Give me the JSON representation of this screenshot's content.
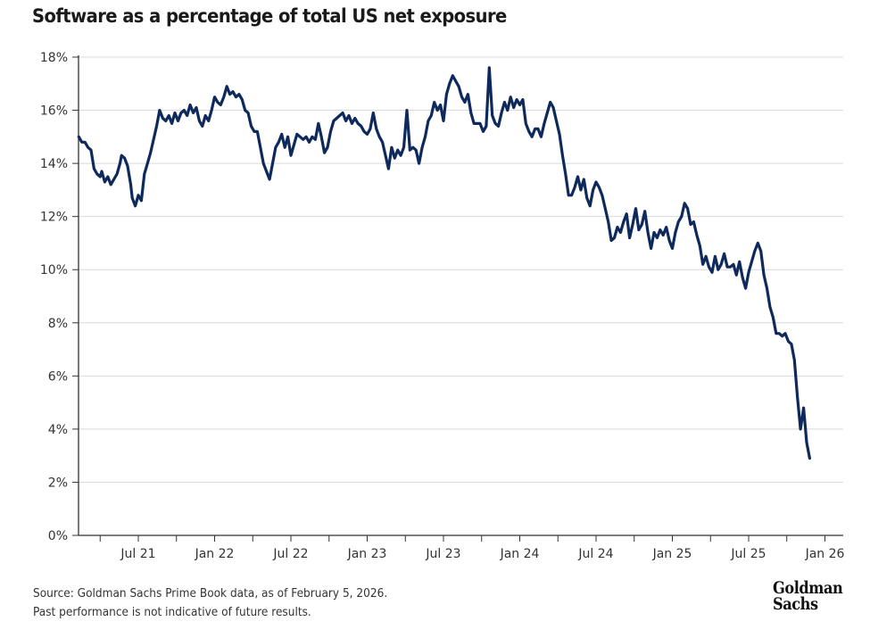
{
  "chart_data": {
    "type": "line",
    "title": "Software as a percentage of total US net exposure",
    "xlabel": "",
    "ylabel": "",
    "ylim": [
      0,
      18
    ],
    "yticks": [
      0,
      2,
      4,
      6,
      8,
      10,
      12,
      14,
      16,
      18
    ],
    "ytick_labels": [
      "0%",
      "2%",
      "4%",
      "6%",
      "8%",
      "10%",
      "12%",
      "14%",
      "16%",
      "18%"
    ],
    "xlim": [
      2021.11,
      2026.12
    ],
    "xticks_major": [
      2021.5,
      2022.0,
      2022.5,
      2023.0,
      2023.5,
      2024.0,
      2024.5,
      2025.0,
      2025.5,
      2026.0
    ],
    "xtick_labels": [
      "Jul 21",
      "Jan 22",
      "Jul 22",
      "Jan 23",
      "Jul 23",
      "Jan 24",
      "Jul 24",
      "Jan 25",
      "Jul 25",
      "Jan 26"
    ],
    "xticks_minor": [
      2021.25,
      2021.75,
      2022.25,
      2022.75,
      2023.25,
      2023.75,
      2024.25,
      2024.75,
      2025.25,
      2025.75
    ],
    "grid": "horizontal",
    "legend": "none",
    "series": [
      {
        "name": "Software % of US net exposure",
        "color": "#0e2a5c",
        "points": [
          [
            2021.11,
            15.0
          ],
          [
            2021.13,
            14.8
          ],
          [
            2021.15,
            14.8
          ],
          [
            2021.17,
            14.6
          ],
          [
            2021.19,
            14.5
          ],
          [
            2021.21,
            13.8
          ],
          [
            2021.23,
            13.6
          ],
          [
            2021.25,
            13.5
          ],
          [
            2021.26,
            13.7
          ],
          [
            2021.28,
            13.3
          ],
          [
            2021.3,
            13.5
          ],
          [
            2021.32,
            13.2
          ],
          [
            2021.34,
            13.4
          ],
          [
            2021.36,
            13.6
          ],
          [
            2021.38,
            14.0
          ],
          [
            2021.39,
            14.3
          ],
          [
            2021.41,
            14.2
          ],
          [
            2021.43,
            13.9
          ],
          [
            2021.45,
            13.2
          ],
          [
            2021.46,
            12.7
          ],
          [
            2021.48,
            12.4
          ],
          [
            2021.5,
            12.8
          ],
          [
            2021.52,
            12.6
          ],
          [
            2021.54,
            13.6
          ],
          [
            2021.56,
            14.0
          ],
          [
            2021.58,
            14.4
          ],
          [
            2021.6,
            14.9
          ],
          [
            2021.62,
            15.4
          ],
          [
            2021.64,
            16.0
          ],
          [
            2021.66,
            15.7
          ],
          [
            2021.68,
            15.6
          ],
          [
            2021.7,
            15.8
          ],
          [
            2021.72,
            15.5
          ],
          [
            2021.74,
            15.9
          ],
          [
            2021.76,
            15.6
          ],
          [
            2021.78,
            15.9
          ],
          [
            2021.8,
            16.0
          ],
          [
            2021.82,
            15.8
          ],
          [
            2021.84,
            16.2
          ],
          [
            2021.86,
            15.9
          ],
          [
            2021.88,
            16.1
          ],
          [
            2021.9,
            15.6
          ],
          [
            2021.92,
            15.4
          ],
          [
            2021.94,
            15.8
          ],
          [
            2021.96,
            15.6
          ],
          [
            2021.98,
            16.0
          ],
          [
            2022.0,
            16.5
          ],
          [
            2022.02,
            16.3
          ],
          [
            2022.04,
            16.2
          ],
          [
            2022.06,
            16.5
          ],
          [
            2022.08,
            16.9
          ],
          [
            2022.1,
            16.6
          ],
          [
            2022.12,
            16.7
          ],
          [
            2022.14,
            16.5
          ],
          [
            2022.16,
            16.6
          ],
          [
            2022.18,
            16.4
          ],
          [
            2022.2,
            16.0
          ],
          [
            2022.22,
            15.9
          ],
          [
            2022.24,
            15.4
          ],
          [
            2022.26,
            15.2
          ],
          [
            2022.28,
            15.2
          ],
          [
            2022.3,
            14.6
          ],
          [
            2022.32,
            14.0
          ],
          [
            2022.34,
            13.7
          ],
          [
            2022.36,
            13.4
          ],
          [
            2022.38,
            14.0
          ],
          [
            2022.4,
            14.6
          ],
          [
            2022.42,
            14.8
          ],
          [
            2022.44,
            15.1
          ],
          [
            2022.46,
            14.6
          ],
          [
            2022.48,
            15.0
          ],
          [
            2022.5,
            14.3
          ],
          [
            2022.52,
            14.7
          ],
          [
            2022.54,
            15.1
          ],
          [
            2022.56,
            15.0
          ],
          [
            2022.58,
            14.9
          ],
          [
            2022.6,
            15.0
          ],
          [
            2022.62,
            14.8
          ],
          [
            2022.64,
            15.0
          ],
          [
            2022.66,
            14.9
          ],
          [
            2022.68,
            15.5
          ],
          [
            2022.7,
            15.0
          ],
          [
            2022.72,
            14.4
          ],
          [
            2022.74,
            14.6
          ],
          [
            2022.76,
            15.2
          ],
          [
            2022.78,
            15.6
          ],
          [
            2022.8,
            15.7
          ],
          [
            2022.82,
            15.8
          ],
          [
            2022.84,
            15.9
          ],
          [
            2022.86,
            15.6
          ],
          [
            2022.88,
            15.8
          ],
          [
            2022.9,
            15.5
          ],
          [
            2022.92,
            15.7
          ],
          [
            2022.94,
            15.5
          ],
          [
            2022.96,
            15.4
          ],
          [
            2022.98,
            15.2
          ],
          [
            2023.0,
            15.1
          ],
          [
            2023.02,
            15.3
          ],
          [
            2023.04,
            15.9
          ],
          [
            2023.06,
            15.3
          ],
          [
            2023.08,
            15.0
          ],
          [
            2023.1,
            14.8
          ],
          [
            2023.12,
            14.3
          ],
          [
            2023.14,
            13.8
          ],
          [
            2023.16,
            14.6
          ],
          [
            2023.18,
            14.2
          ],
          [
            2023.2,
            14.5
          ],
          [
            2023.22,
            14.3
          ],
          [
            2023.24,
            14.6
          ],
          [
            2023.26,
            16.0
          ],
          [
            2023.28,
            14.5
          ],
          [
            2023.3,
            14.6
          ],
          [
            2023.32,
            14.5
          ],
          [
            2023.34,
            14.0
          ],
          [
            2023.36,
            14.6
          ],
          [
            2023.38,
            15.0
          ],
          [
            2023.4,
            15.6
          ],
          [
            2023.42,
            15.8
          ],
          [
            2023.44,
            16.3
          ],
          [
            2023.46,
            16.0
          ],
          [
            2023.48,
            16.2
          ],
          [
            2023.5,
            15.6
          ],
          [
            2023.52,
            16.6
          ],
          [
            2023.54,
            17.0
          ],
          [
            2023.56,
            17.3
          ],
          [
            2023.58,
            17.1
          ],
          [
            2023.6,
            16.9
          ],
          [
            2023.62,
            16.5
          ],
          [
            2023.64,
            16.3
          ],
          [
            2023.66,
            16.6
          ],
          [
            2023.68,
            15.9
          ],
          [
            2023.7,
            15.5
          ],
          [
            2023.72,
            15.5
          ],
          [
            2023.74,
            15.5
          ],
          [
            2023.76,
            15.2
          ],
          [
            2023.78,
            15.4
          ],
          [
            2023.8,
            17.6
          ],
          [
            2023.82,
            15.8
          ],
          [
            2023.84,
            15.5
          ],
          [
            2023.86,
            15.4
          ],
          [
            2023.88,
            15.9
          ],
          [
            2023.9,
            16.3
          ],
          [
            2023.92,
            16.0
          ],
          [
            2023.94,
            16.5
          ],
          [
            2023.96,
            16.1
          ],
          [
            2023.98,
            16.4
          ],
          [
            2024.0,
            16.2
          ],
          [
            2024.02,
            16.4
          ],
          [
            2024.04,
            15.5
          ],
          [
            2024.06,
            15.2
          ],
          [
            2024.08,
            15.0
          ],
          [
            2024.1,
            15.3
          ],
          [
            2024.12,
            15.3
          ],
          [
            2024.14,
            15.0
          ],
          [
            2024.16,
            15.5
          ],
          [
            2024.18,
            15.9
          ],
          [
            2024.2,
            16.3
          ],
          [
            2024.22,
            16.1
          ],
          [
            2024.24,
            15.6
          ],
          [
            2024.26,
            15.1
          ],
          [
            2024.28,
            14.3
          ],
          [
            2024.3,
            13.6
          ],
          [
            2024.32,
            12.8
          ],
          [
            2024.34,
            12.8
          ],
          [
            2024.36,
            13.1
          ],
          [
            2024.38,
            13.5
          ],
          [
            2024.4,
            13.0
          ],
          [
            2024.42,
            13.4
          ],
          [
            2024.44,
            12.7
          ],
          [
            2024.46,
            12.4
          ],
          [
            2024.48,
            13.0
          ],
          [
            2024.5,
            13.3
          ],
          [
            2024.52,
            13.1
          ],
          [
            2024.54,
            12.8
          ],
          [
            2024.56,
            12.3
          ],
          [
            2024.58,
            11.8
          ],
          [
            2024.6,
            11.1
          ],
          [
            2024.62,
            11.2
          ],
          [
            2024.64,
            11.6
          ],
          [
            2024.66,
            11.4
          ],
          [
            2024.68,
            11.8
          ],
          [
            2024.7,
            12.1
          ],
          [
            2024.72,
            11.2
          ],
          [
            2024.74,
            11.7
          ],
          [
            2024.76,
            12.3
          ],
          [
            2024.78,
            11.5
          ],
          [
            2024.8,
            11.7
          ],
          [
            2024.82,
            12.2
          ],
          [
            2024.84,
            11.4
          ],
          [
            2024.86,
            10.8
          ],
          [
            2024.88,
            11.4
          ],
          [
            2024.9,
            11.2
          ],
          [
            2024.92,
            11.5
          ],
          [
            2024.94,
            11.3
          ],
          [
            2024.96,
            11.6
          ],
          [
            2024.98,
            11.1
          ],
          [
            2025.0,
            10.8
          ],
          [
            2025.02,
            11.4
          ],
          [
            2025.04,
            11.8
          ],
          [
            2025.06,
            12.0
          ],
          [
            2025.08,
            12.5
          ],
          [
            2025.1,
            12.3
          ],
          [
            2025.12,
            11.7
          ],
          [
            2025.14,
            11.8
          ],
          [
            2025.16,
            11.3
          ],
          [
            2025.18,
            10.9
          ],
          [
            2025.2,
            10.2
          ],
          [
            2025.22,
            10.5
          ],
          [
            2025.24,
            10.1
          ],
          [
            2025.26,
            9.9
          ],
          [
            2025.28,
            10.5
          ],
          [
            2025.3,
            10.0
          ],
          [
            2025.32,
            10.2
          ],
          [
            2025.34,
            10.6
          ],
          [
            2025.36,
            10.1
          ],
          [
            2025.38,
            10.1
          ],
          [
            2025.4,
            10.2
          ],
          [
            2025.42,
            9.8
          ],
          [
            2025.44,
            10.3
          ],
          [
            2025.46,
            9.7
          ],
          [
            2025.48,
            9.3
          ],
          [
            2025.5,
            9.9
          ],
          [
            2025.52,
            10.3
          ],
          [
            2025.54,
            10.7
          ],
          [
            2025.56,
            11.0
          ],
          [
            2025.58,
            10.7
          ],
          [
            2025.6,
            9.8
          ],
          [
            2025.62,
            9.3
          ],
          [
            2025.64,
            8.6
          ],
          [
            2025.66,
            8.2
          ],
          [
            2025.68,
            7.6
          ],
          [
            2025.7,
            7.6
          ],
          [
            2025.72,
            7.5
          ],
          [
            2025.74,
            7.6
          ],
          [
            2025.76,
            7.3
          ],
          [
            2025.78,
            7.2
          ],
          [
            2025.8,
            6.6
          ],
          [
            2025.82,
            5.2
          ],
          [
            2025.84,
            4.0
          ],
          [
            2025.86,
            4.8
          ],
          [
            2025.88,
            3.5
          ],
          [
            2025.9,
            2.9
          ]
        ]
      }
    ]
  },
  "footer": {
    "source": "Source: Goldman Sachs Prime Book data, as of February 5, 2026.",
    "disclaimer": "Past performance is not indicative of future results."
  },
  "logo": {
    "line1": "Goldman",
    "line2": "Sachs"
  }
}
